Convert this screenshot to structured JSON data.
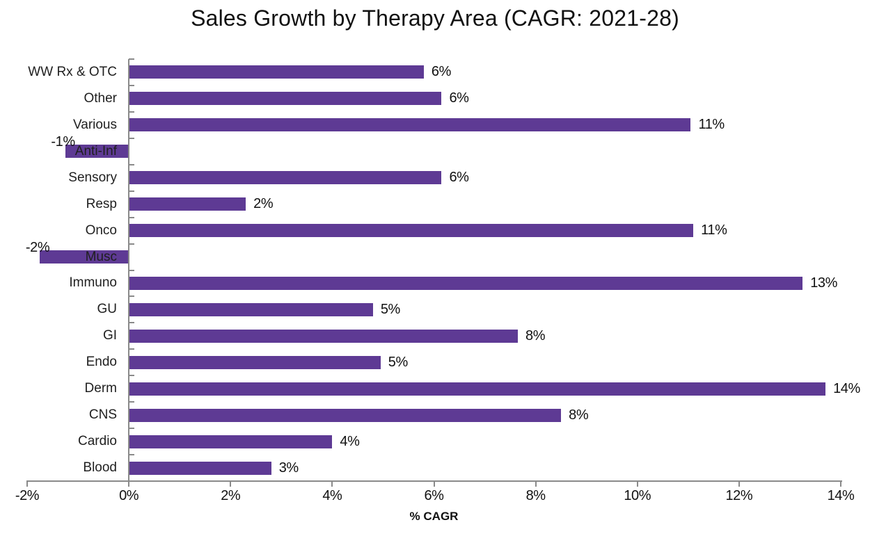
{
  "title": "Sales Growth by Therapy Area (CAGR: 2021-28)",
  "chart_data": {
    "type": "bar",
    "orientation": "horizontal",
    "title": "Sales Growth by Therapy Area (CAGR: 2021-28)",
    "xlabel": "% CAGR",
    "ylabel": "",
    "xlim": [
      -2,
      14
    ],
    "grid": false,
    "legend": "none",
    "bar_color": "#5E3A94",
    "axis_color": "#8A8A8A",
    "x_tick_labels": [
      "-2%",
      "0%",
      "2%",
      "4%",
      "6%",
      "8%",
      "10%",
      "12%",
      "14%"
    ],
    "x_tick_values": [
      -2,
      0,
      2,
      4,
      6,
      8,
      10,
      12,
      14
    ],
    "rows_top_to_bottom": [
      {
        "category": "WW Rx & OTC",
        "value": 5.8,
        "label": "6%"
      },
      {
        "category": "Other",
        "value": 6.15,
        "label": "6%"
      },
      {
        "category": "Various",
        "value": 11.05,
        "label": "11%"
      },
      {
        "category": "Anti-Inf",
        "value": -1.25,
        "label": "-1%"
      },
      {
        "category": "Sensory",
        "value": 6.15,
        "label": "6%"
      },
      {
        "category": "Resp",
        "value": 2.3,
        "label": "2%"
      },
      {
        "category": "Onco",
        "value": 11.1,
        "label": "11%"
      },
      {
        "category": "Musc",
        "value": -1.75,
        "label": "-2%"
      },
      {
        "category": "Immuno",
        "value": 13.25,
        "label": "13%"
      },
      {
        "category": "GU",
        "value": 4.8,
        "label": "5%"
      },
      {
        "category": "GI",
        "value": 7.65,
        "label": "8%"
      },
      {
        "category": "Endo",
        "value": 4.95,
        "label": "5%"
      },
      {
        "category": "Derm",
        "value": 13.7,
        "label": "14%"
      },
      {
        "category": "CNS",
        "value": 8.5,
        "label": "8%"
      },
      {
        "category": "Cardio",
        "value": 4.0,
        "label": "4%"
      },
      {
        "category": "Blood",
        "value": 2.8,
        "label": "3%"
      }
    ]
  }
}
